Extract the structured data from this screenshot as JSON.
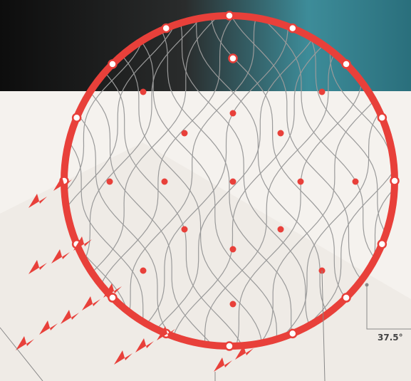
{
  "annotations": {
    "angle_label": "37.5°"
  }
}
